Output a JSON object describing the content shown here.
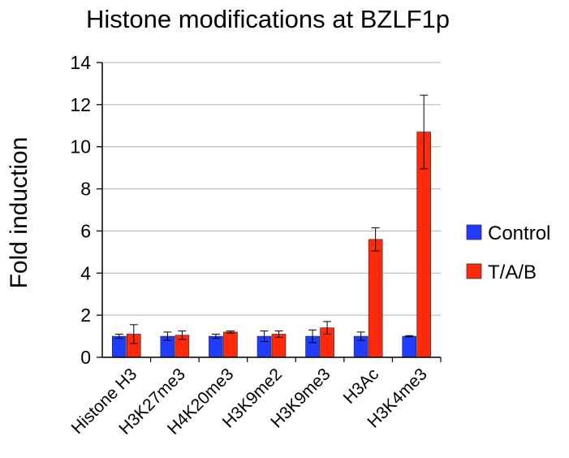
{
  "chart_data": {
    "type": "bar",
    "title": "Histone modifications at BZLF1p",
    "xlabel": "",
    "ylabel": "Fold induction",
    "ylim": [
      0,
      14
    ],
    "yticks": [
      "0",
      "2",
      "4",
      "6",
      "8",
      "10",
      "12",
      "14"
    ],
    "grid": true,
    "legend_position": "right",
    "categories": [
      "Histone H3",
      "H3K27me3",
      "H4K20me3",
      "H3K9me2",
      "H3K9me3",
      "H3Ac",
      "H3K4me3"
    ],
    "series": [
      {
        "name": "Control",
        "color": "#1f3cff",
        "values": [
          1.0,
          1.0,
          1.0,
          1.0,
          1.0,
          1.0,
          1.0
        ],
        "errors": [
          0.1,
          0.2,
          0.1,
          0.25,
          0.3,
          0.2,
          0.03
        ]
      },
      {
        "name": "T/A/B",
        "color": "#ff2a0a",
        "values": [
          1.1,
          1.05,
          1.2,
          1.1,
          1.4,
          5.6,
          10.7
        ],
        "errors": [
          0.45,
          0.2,
          0.05,
          0.15,
          0.3,
          0.55,
          1.75
        ]
      }
    ]
  }
}
